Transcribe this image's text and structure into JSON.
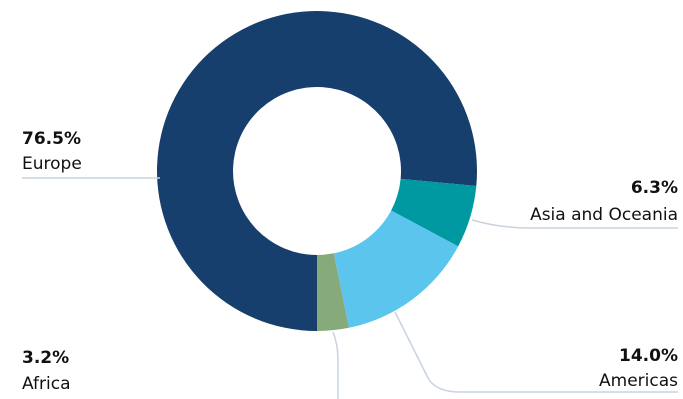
{
  "chart_data": {
    "type": "pie",
    "donut": true,
    "unit": "%",
    "slices": [
      {
        "name": "Europe",
        "value": 76.5,
        "label": "76.5%",
        "color": "#173f6e"
      },
      {
        "name": "Asia and Oceania",
        "value": 6.3,
        "label": "6.3%",
        "color": "#0099a1"
      },
      {
        "name": "Americas",
        "value": 14.0,
        "label": "14.0%",
        "color": "#5bc5ee"
      },
      {
        "name": "Africa",
        "value": 3.2,
        "label": "3.2%",
        "color": "#87aa7b"
      }
    ],
    "legend": "none"
  }
}
